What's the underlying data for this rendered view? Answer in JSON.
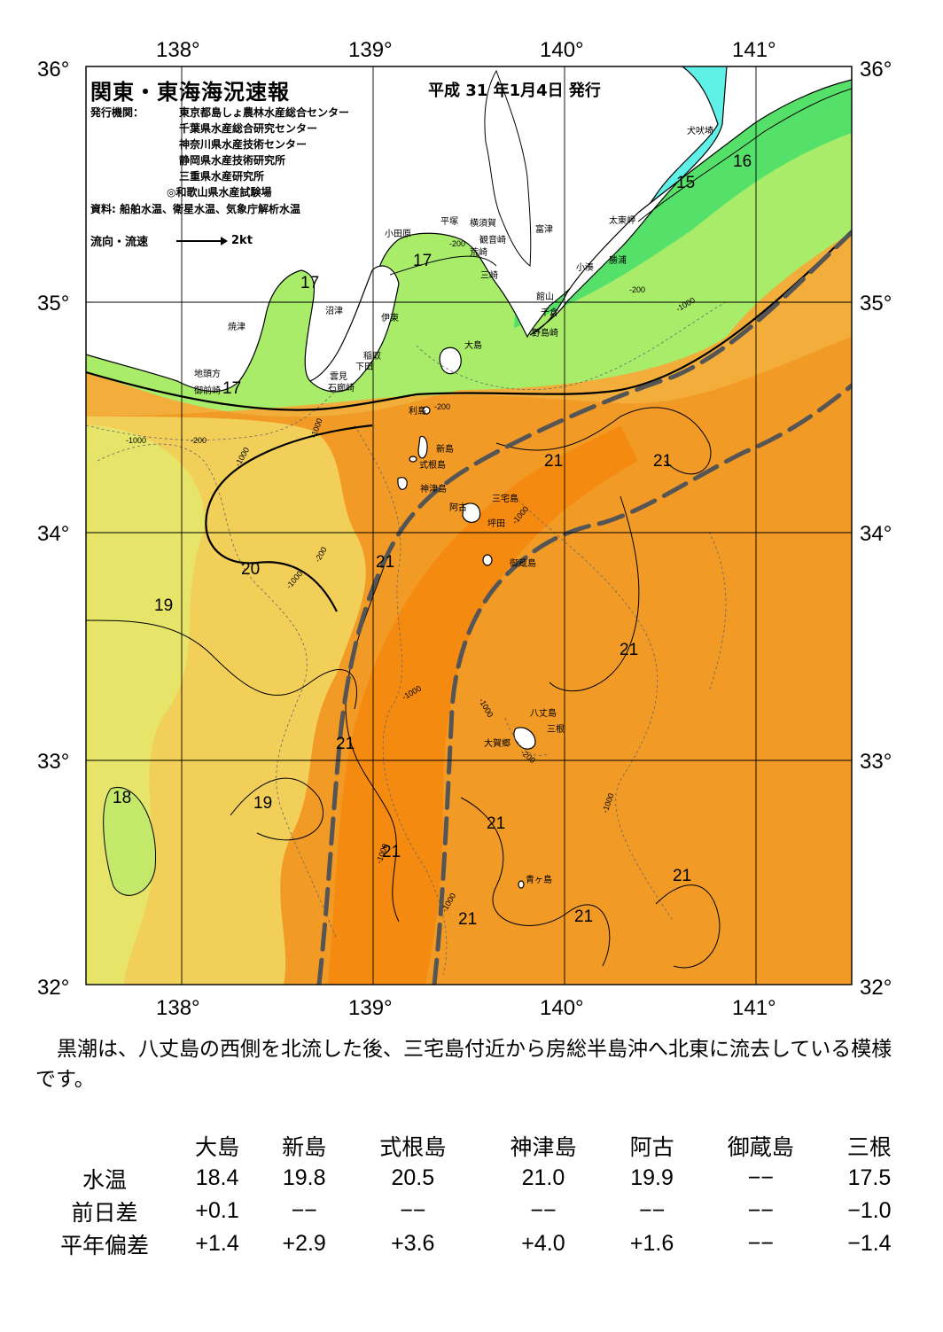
{
  "header": {
    "title": "関東・東海海況速報",
    "date": "平成 31 年1月4日 発行",
    "publisher_label": "発行機関：",
    "publishers": [
      "東京都島しょ農林水産総合センター",
      "千葉県水産総合研究センター",
      "神奈川県水産技術センター",
      "静岡県水産技術研究所",
      "三重県水産研究所",
      "◎和歌山県水産試験場"
    ],
    "source": "資料: 船舶水温、衛星水温、気象庁解析水温",
    "flow_legend_label": "流向・流速",
    "flow_legend_scale": "2kt"
  },
  "map": {
    "lon_labels": [
      "138°",
      "139°",
      "140°",
      "141°"
    ],
    "lat_labels": [
      "36°",
      "35°",
      "34°",
      "33°",
      "32°"
    ],
    "isotherm_labels": [
      "15",
      "16",
      "17",
      "17",
      "17",
      "19",
      "19",
      "20",
      "21",
      "21",
      "21",
      "21",
      "21",
      "21",
      "21",
      "21",
      "21",
      "21",
      "18"
    ],
    "depth_labels": [
      "-200",
      "-200",
      "-1000",
      "-1000",
      "-200",
      "-1000",
      "-1000",
      "-1000",
      "-200",
      "-1000",
      "-1000",
      "-1000",
      "-1000",
      "-200",
      "-1000",
      "-200",
      "-1000"
    ],
    "place_names": {
      "inubozaki": "犬吠埼",
      "taitomisaki": "太東岬",
      "katsuura": "勝浦",
      "kominato": "小湊",
      "tateyama": "館山",
      "chikura": "千倉",
      "nojimazaki": "野島崎",
      "futtsu": "富津",
      "yokosuka": "横須賀",
      "kannonzaki": "観音崎",
      "hiratsuka": "平塚",
      "odawara": "小田原",
      "arasaki": "荒崎",
      "misaki": "三崎",
      "numazu": "沼津",
      "ito": "伊東",
      "inatori": "稲取",
      "shimoda": "下田",
      "kumomi": "雲見",
      "irozaki": "石廊崎",
      "yaizu": "焼津",
      "jitogata": "地頭方",
      "omaezaki": "御前崎",
      "oshima": "大島",
      "toshima": "利島",
      "niijima": "新島",
      "shikinejima": "式根島",
      "kozushima": "神津島",
      "miyakejima": "三宅島",
      "ako": "阿古",
      "tsubota": "坪田",
      "mikurajima": "御蔵島",
      "hachijojima": "八丈島",
      "mitsune": "三根",
      "okago": "大賀郷",
      "aogashima": "青ヶ島"
    }
  },
  "comment": "黒潮は、八丈島の西側を北流した後、三宅島付近から房総半島沖へ北東に流去している模様です。",
  "table": {
    "stations": [
      "大島",
      "新島",
      "式根島",
      "神津島",
      "阿古",
      "御蔵島",
      "三根"
    ],
    "rows": [
      {
        "label": "水温",
        "values": [
          "18.4",
          "19.8",
          "20.5",
          "21.0",
          "19.9",
          "−−",
          "17.5"
        ]
      },
      {
        "label": "前日差",
        "values": [
          "+0.1",
          "−−",
          "−−",
          "−−",
          "−−",
          "−−",
          "−1.0"
        ]
      },
      {
        "label": "平年偏差",
        "values": [
          "+1.4",
          "+2.9",
          "+3.6",
          "+4.0",
          "+1.6",
          "−−",
          "−1.4"
        ]
      }
    ]
  },
  "colors": {
    "cold_cyan": "#5ff0e8",
    "green_15": "#55e06a",
    "lightgreen_17": "#a8ec6a",
    "yellow_18": "#e6e56a",
    "lightorange_19": "#f2cf58",
    "orange_20": "#f2ad3a",
    "orange_21": "#f29a26",
    "deep_orange": "#f58a10",
    "kuroshio_line": "#555555"
  }
}
